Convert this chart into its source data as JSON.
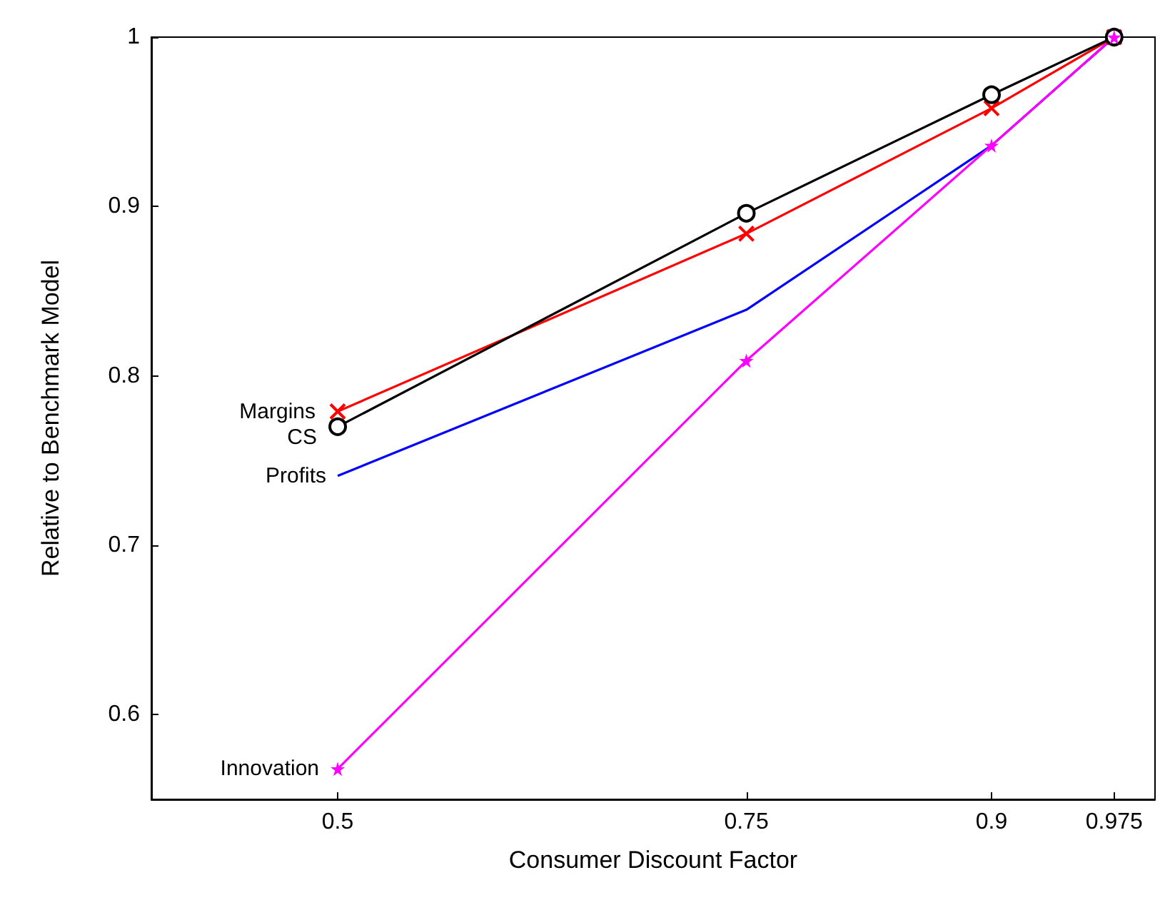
{
  "chart_data": {
    "type": "line",
    "xlabel": "Consumer Discount Factor",
    "ylabel": "Relative to Benchmark Model",
    "x": [
      0.5,
      0.75,
      0.9,
      0.975
    ],
    "xlim": [
      0.386,
      1.0
    ],
    "xticks": [
      0.5,
      0.75,
      0.9,
      0.975
    ],
    "ylim": [
      0.55,
      1.0
    ],
    "yticks": [
      0.6,
      0.7,
      0.8,
      0.9,
      1
    ],
    "grid": false,
    "legend": false,
    "series": [
      {
        "name": "Margins",
        "color": "#ff0000",
        "marker": "cross",
        "values": [
          0.779,
          0.884,
          0.958,
          1.0
        ]
      },
      {
        "name": "CS",
        "color": "#000000",
        "marker": "circle",
        "values": [
          0.77,
          0.896,
          0.966,
          1.0
        ]
      },
      {
        "name": "Profits",
        "color": "#0000ff",
        "marker": "none",
        "values": [
          0.741,
          0.839,
          0.936,
          1.0
        ]
      },
      {
        "name": "Innovation",
        "color": "#ff00ff",
        "marker": "star",
        "values": [
          0.568,
          0.809,
          0.936,
          1.0
        ]
      }
    ]
  }
}
